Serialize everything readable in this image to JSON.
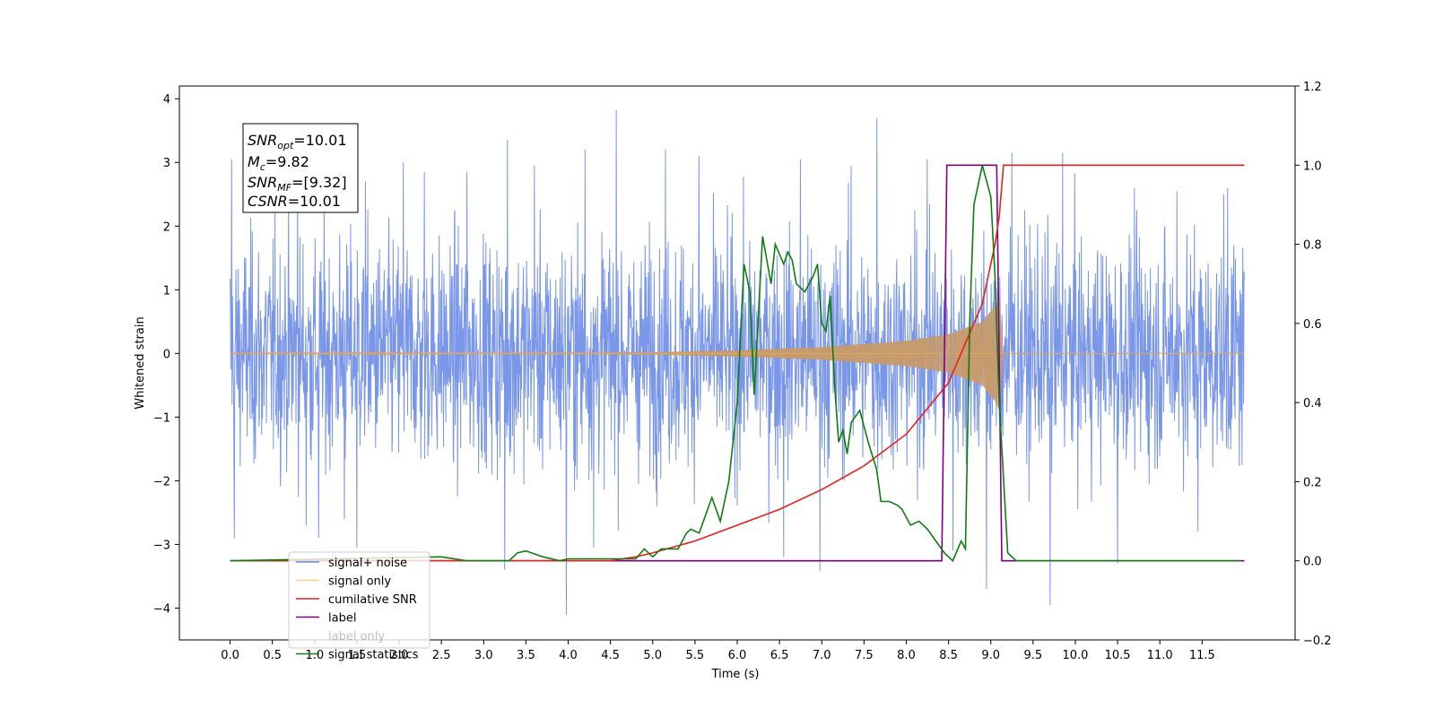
{
  "chart_data": {
    "type": "line",
    "xlabel": "Time (s)",
    "ylabel_left": "Whitened strain",
    "ylabel_right": "",
    "xlim": [
      -0.6,
      12.6
    ],
    "ylim_left": [
      -4.5,
      4.2
    ],
    "ylim_right": [
      -0.2,
      1.2
    ],
    "x_ticks": [
      0.0,
      0.5,
      1.0,
      1.5,
      2.0,
      2.5,
      3.0,
      3.5,
      4.0,
      4.5,
      5.0,
      5.5,
      6.0,
      6.5,
      7.0,
      7.5,
      8.0,
      8.5,
      9.0,
      9.5,
      10.0,
      10.5,
      11.0,
      11.5
    ],
    "x_tick_labels": [
      "0.0",
      "0.5",
      "1.0",
      "1.5",
      "2.0",
      "2.5",
      "3.0",
      "3.5",
      "4.0",
      "4.5",
      "5.0",
      "5.5",
      "6.0",
      "6.5",
      "7.0",
      "7.5",
      "8.0",
      "8.5",
      "9.0",
      "9.5",
      "10.0",
      "10.5",
      "11.0",
      "11.5"
    ],
    "y_ticks_left": [
      -4,
      -3,
      -2,
      -1,
      0,
      1,
      2,
      3,
      4
    ],
    "y_tick_labels_left": [
      "−4",
      "−3",
      "−2",
      "−1",
      "0",
      "1",
      "2",
      "3",
      "4"
    ],
    "y_ticks_right": [
      -0.2,
      0.0,
      0.2,
      0.4,
      0.6,
      0.8,
      1.0,
      1.2
    ],
    "y_tick_labels_right": [
      "−0.2",
      "0.0",
      "0.2",
      "0.4",
      "0.6",
      "0.8",
      "1.0",
      "1.2"
    ],
    "grid": false,
    "legend_placement": "lower-left",
    "annotation_box": {
      "lines": [
        {
          "name": "SNR",
          "sub": "opt",
          "value": "=10.01"
        },
        {
          "name": "M",
          "sub": "c",
          "value": "=9.82"
        },
        {
          "name": "SNR",
          "sub": "MF",
          "value": "=[9.32]"
        },
        {
          "name": "CSNR",
          "sub": "",
          "value": "=10.01"
        }
      ]
    },
    "series": [
      {
        "name": "signal+ noise",
        "axis": "left",
        "color": "#6a8be6",
        "x_range": [
          0.0,
          12.0
        ],
        "typical_amplitude": 1.6,
        "spikes": [
          {
            "x": 0.02,
            "y": 3.05
          },
          {
            "x": 0.05,
            "y": -2.9
          },
          {
            "x": 0.8,
            "y": 2.6
          },
          {
            "x": 0.9,
            "y": -2.7
          },
          {
            "x": 1.05,
            "y": -2.9
          },
          {
            "x": 1.35,
            "y": -2.6
          },
          {
            "x": 1.5,
            "y": -3.05
          },
          {
            "x": 1.6,
            "y": 2.7
          },
          {
            "x": 2.05,
            "y": 3.0
          },
          {
            "x": 2.3,
            "y": 2.85
          },
          {
            "x": 2.8,
            "y": 2.85
          },
          {
            "x": 3.25,
            "y": -3.4
          },
          {
            "x": 3.28,
            "y": 3.35
          },
          {
            "x": 3.6,
            "y": 2.95
          },
          {
            "x": 3.98,
            "y": -4.1
          },
          {
            "x": 4.2,
            "y": 3.2
          },
          {
            "x": 4.3,
            "y": -3.05
          },
          {
            "x": 4.57,
            "y": 3.82
          },
          {
            "x": 5.15,
            "y": 3.2
          },
          {
            "x": 5.55,
            "y": 3.1
          },
          {
            "x": 6.55,
            "y": -3.2
          },
          {
            "x": 6.75,
            "y": 3.05
          },
          {
            "x": 6.98,
            "y": -3.42
          },
          {
            "x": 7.35,
            "y": 2.95
          },
          {
            "x": 7.65,
            "y": 3.7
          },
          {
            "x": 8.25,
            "y": 3.05
          },
          {
            "x": 8.55,
            "y": -3.1
          },
          {
            "x": 8.95,
            "y": -3.7
          },
          {
            "x": 9.25,
            "y": 3.15
          },
          {
            "x": 9.7,
            "y": -3.95
          },
          {
            "x": 9.85,
            "y": 3.15
          },
          {
            "x": 10.5,
            "y": -3.3
          },
          {
            "x": 10.7,
            "y": 2.6
          },
          {
            "x": 11.2,
            "y": 2.55
          },
          {
            "x": 11.45,
            "y": -2.8
          },
          {
            "x": 11.8,
            "y": 2.6
          }
        ]
      },
      {
        "name": "signal only",
        "axis": "left",
        "color": "#ffcc80",
        "x_range": [
          0.0,
          12.0
        ],
        "chirp_merger_x": 9.1,
        "amplitude_envelope": [
          [
            0.0,
            0.005
          ],
          [
            3.0,
            0.01
          ],
          [
            5.0,
            0.02
          ],
          [
            6.0,
            0.05
          ],
          [
            7.0,
            0.1
          ],
          [
            8.0,
            0.2
          ],
          [
            8.5,
            0.3
          ],
          [
            8.9,
            0.5
          ],
          [
            9.05,
            0.75
          ],
          [
            9.1,
            0.9
          ],
          [
            9.15,
            0.0
          ],
          [
            12.0,
            0.0
          ]
        ]
      },
      {
        "name": "cumilative SNR",
        "axis": "right",
        "color": "#e8201c",
        "x": [
          0.0,
          4.5,
          4.8,
          5.0,
          5.5,
          6.0,
          6.5,
          7.0,
          7.5,
          8.0,
          8.5,
          8.9,
          9.05,
          9.1,
          9.15,
          12.0
        ],
        "values": [
          0.0,
          0.0,
          0.01,
          0.02,
          0.05,
          0.09,
          0.13,
          0.18,
          0.24,
          0.32,
          0.45,
          0.65,
          0.8,
          0.87,
          1.0,
          1.0
        ]
      },
      {
        "name": "label",
        "axis": "right",
        "color": "#800080",
        "x": [
          0.0,
          8.42,
          8.48,
          9.07,
          9.13,
          12.0
        ],
        "values": [
          0.0,
          0.0,
          1.0,
          1.0,
          0.0,
          0.0
        ]
      },
      {
        "name": "label only",
        "axis": "right",
        "color": "#ffffff",
        "x": [],
        "values": []
      },
      {
        "name": "signal statistics",
        "axis": "right",
        "color": "#107c10",
        "x": [
          0.0,
          2.5,
          2.8,
          3.3,
          3.4,
          3.5,
          3.7,
          3.9,
          4.0,
          4.3,
          4.5,
          4.8,
          4.9,
          5.0,
          5.1,
          5.3,
          5.4,
          5.45,
          5.55,
          5.7,
          5.8,
          5.9,
          6.0,
          6.08,
          6.15,
          6.2,
          6.3,
          6.4,
          6.45,
          6.55,
          6.6,
          6.65,
          6.7,
          6.8,
          6.9,
          6.95,
          7.0,
          7.05,
          7.1,
          7.15,
          7.2,
          7.25,
          7.3,
          7.35,
          7.45,
          7.55,
          7.65,
          7.7,
          7.8,
          7.9,
          7.95,
          8.05,
          8.15,
          8.25,
          8.35,
          8.45,
          8.55,
          8.65,
          8.7,
          8.75,
          8.8,
          8.9,
          9.0,
          9.05,
          9.1,
          9.2,
          9.3,
          11.95
        ],
        "values": [
          0.0,
          0.01,
          0.0,
          0.0,
          0.02,
          0.025,
          0.01,
          0.0,
          0.005,
          0.005,
          0.005,
          0.005,
          0.03,
          0.01,
          0.03,
          0.03,
          0.07,
          0.08,
          0.07,
          0.16,
          0.1,
          0.2,
          0.4,
          0.75,
          0.68,
          0.42,
          0.82,
          0.7,
          0.8,
          0.75,
          0.78,
          0.76,
          0.7,
          0.68,
          0.72,
          0.75,
          0.6,
          0.58,
          0.67,
          0.45,
          0.3,
          0.33,
          0.27,
          0.35,
          0.38,
          0.3,
          0.23,
          0.15,
          0.15,
          0.14,
          0.13,
          0.09,
          0.1,
          0.08,
          0.05,
          0.02,
          0.0,
          0.05,
          0.03,
          0.6,
          0.9,
          1.0,
          0.92,
          0.72,
          0.4,
          0.02,
          0.0,
          0.0
        ]
      }
    ]
  }
}
